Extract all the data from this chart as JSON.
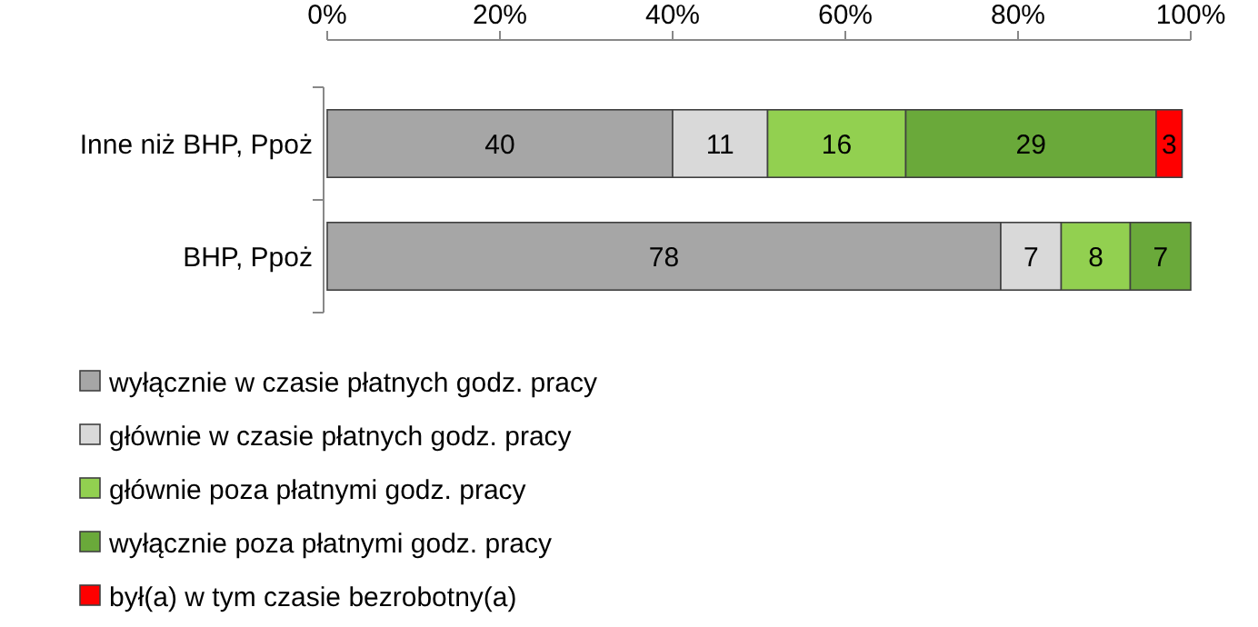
{
  "chart_data": {
    "type": "bar",
    "orientation": "horizontal",
    "stacked": true,
    "categories": [
      "Inne niż BHP, Ppoż",
      "BHP, Ppoż"
    ],
    "series": [
      {
        "name": "wyłącznie w czasie płatnych godz. pracy",
        "color": "#a6a6a6",
        "values": [
          40,
          78
        ]
      },
      {
        "name": "głównie w czasie płatnych godz. pracy",
        "color": "#d9d9d9",
        "values": [
          11,
          7
        ]
      },
      {
        "name": "głównie poza płatnymi godz. pracy",
        "color": "#92d050",
        "values": [
          16,
          8
        ]
      },
      {
        "name": "wyłącznie poza płatnymi godz. pracy",
        "color": "#6aa93a",
        "values": [
          29,
          7
        ]
      },
      {
        "name": "był(a) w tym czasie bezrobotny(a)",
        "color": "#ff0000",
        "values": [
          3,
          null
        ]
      }
    ],
    "xlim": [
      0,
      100
    ],
    "xticks": [
      {
        "value": 0,
        "label": "0%"
      },
      {
        "value": 20,
        "label": "20%"
      },
      {
        "value": 40,
        "label": "40%"
      },
      {
        "value": 60,
        "label": "60%"
      },
      {
        "value": 80,
        "label": "80%"
      },
      {
        "value": 100,
        "label": "100%"
      }
    ],
    "data_labels": true,
    "legend": "bottom",
    "grid": false
  }
}
